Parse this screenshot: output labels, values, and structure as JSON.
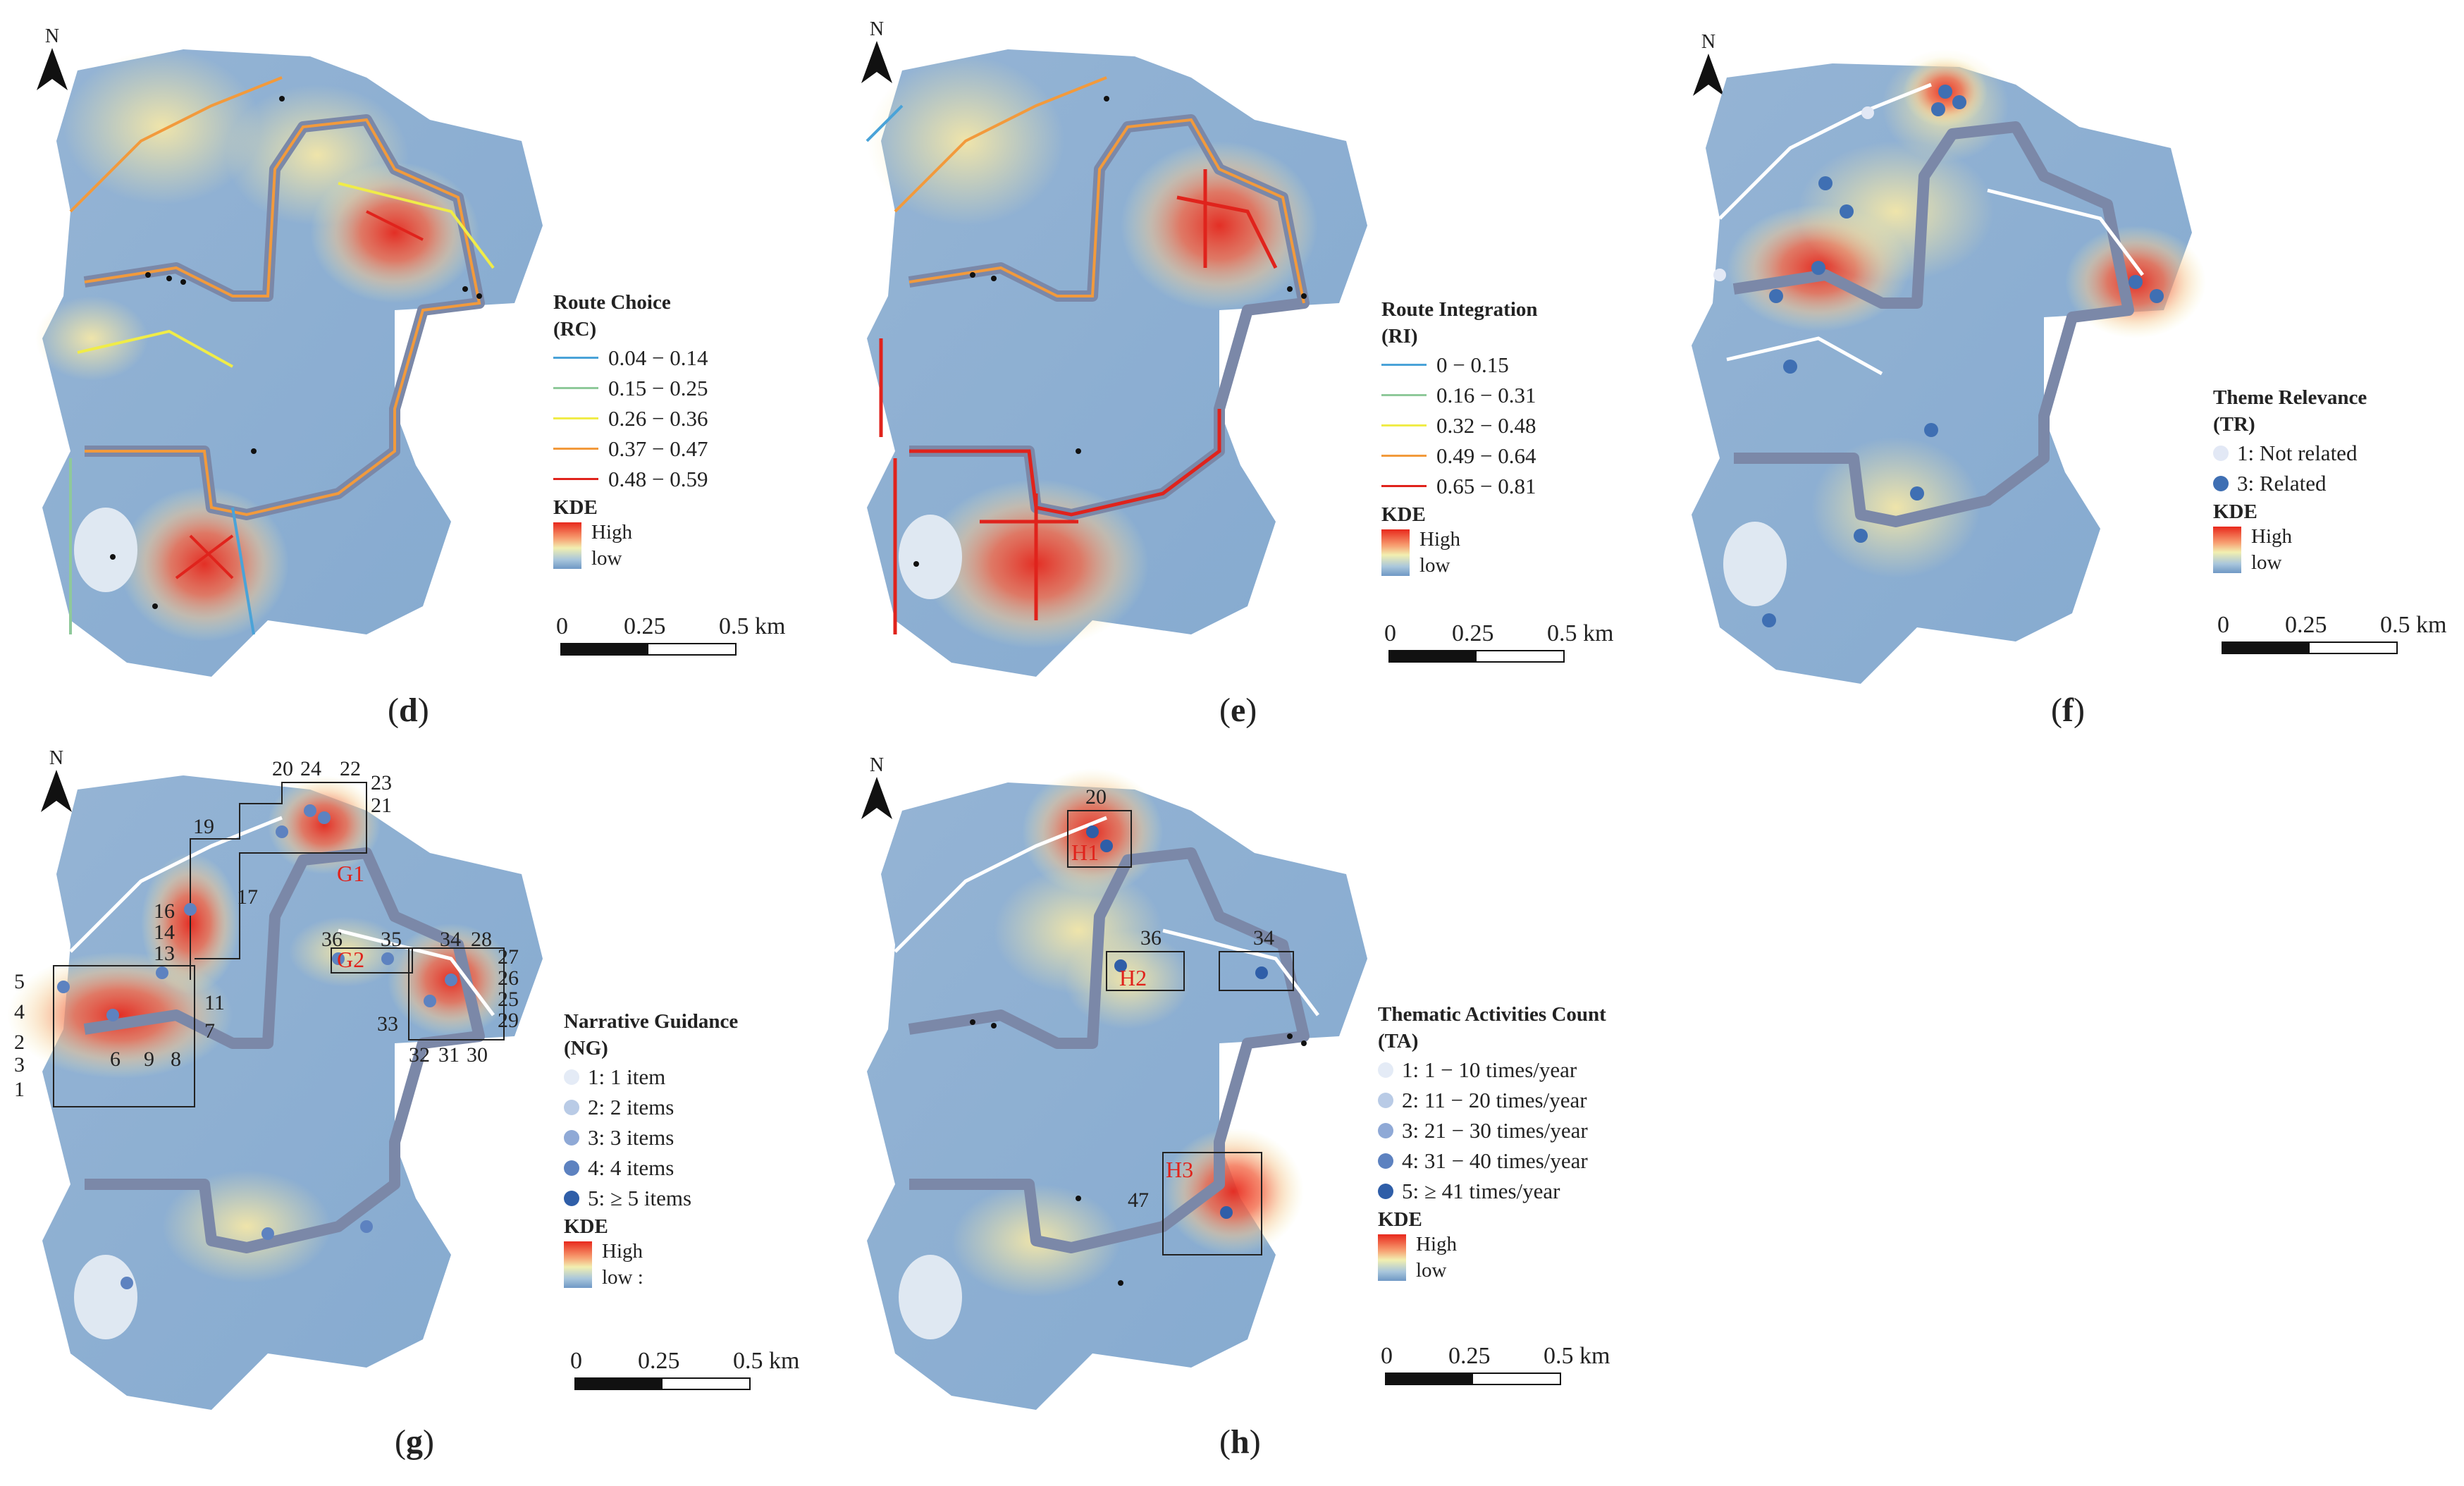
{
  "north_label": "N",
  "kde": {
    "title": "KDE",
    "high": "High",
    "low": "low",
    "low_g": "low :"
  },
  "scale": {
    "t0": "0",
    "t1": "0.25",
    "t2": "0.5 km"
  },
  "colors": {
    "road": "#7b88a8",
    "white_road": "#ffffff",
    "black": "#111111"
  },
  "panels": {
    "d": {
      "label": "d",
      "legend_title": "Route Choice",
      "legend_abbr": "(RC)",
      "items": [
        {
          "text": "0.04 − 0.14",
          "color": "#4aa3d8"
        },
        {
          "text": "0.15 − 0.25",
          "color": "#8fc99a"
        },
        {
          "text": "0.26 − 0.36",
          "color": "#f0ec48"
        },
        {
          "text": "0.37 − 0.47",
          "color": "#f29a3c"
        },
        {
          "text": "0.48 − 0.59",
          "color": "#e0231c"
        }
      ]
    },
    "e": {
      "label": "e",
      "legend_title": "Route Integration",
      "legend_abbr": "(RI)",
      "items": [
        {
          "text": "0 − 0.15",
          "color": "#4aa3d8"
        },
        {
          "text": "0.16 − 0.31",
          "color": "#8fc99a"
        },
        {
          "text": "0.32 − 0.48",
          "color": "#f0ec48"
        },
        {
          "text": "0.49 − 0.64",
          "color": "#f29a3c"
        },
        {
          "text": "0.65 − 0.81",
          "color": "#e0231c"
        }
      ]
    },
    "f": {
      "label": "f",
      "legend_title": "Theme Relevance",
      "legend_abbr": "(TR)",
      "items": [
        {
          "text": "1: Not related",
          "color": "#e2e8f5"
        },
        {
          "text": "3: Related",
          "color": "#3f6fb3"
        }
      ]
    },
    "g": {
      "label": "g",
      "legend_title": "Narrative Guidance",
      "legend_abbr": "(NG)",
      "items": [
        {
          "text": "1: 1 item",
          "color": "#e4ebf6"
        },
        {
          "text": "2: 2 items",
          "color": "#b9cbe6"
        },
        {
          "text": "3: 3 items",
          "color": "#8fa9d6"
        },
        {
          "text": "4: 4 items",
          "color": "#5d82c0"
        },
        {
          "text": "5: ≥ 5 items",
          "color": "#2f5ea8"
        }
      ],
      "numbers": [
        "1",
        "2",
        "3",
        "4",
        "5",
        "6",
        "7",
        "8",
        "9",
        "11",
        "13",
        "14",
        "16",
        "17",
        "19",
        "20",
        "21",
        "22",
        "23",
        "24",
        "25",
        "26",
        "27",
        "28",
        "29",
        "30",
        "31",
        "32",
        "33",
        "34",
        "35",
        "36"
      ],
      "boxes": [
        "G1",
        "G2"
      ]
    },
    "h": {
      "label": "h",
      "legend_title": "Thematic Activities Count",
      "legend_abbr": "(TA)",
      "items": [
        {
          "text": "1: 1 − 10 times/year",
          "color": "#e4ebf6"
        },
        {
          "text": "2: 11 − 20 times/year",
          "color": "#b9cbe6"
        },
        {
          "text": "3: 21 − 30 times/year",
          "color": "#8fa9d6"
        },
        {
          "text": "4: 31 − 40 times/year",
          "color": "#5d82c0"
        },
        {
          "text": "5: ≥ 41 times/year",
          "color": "#2f5ea8"
        }
      ],
      "numbers": [
        "20",
        "36",
        "34",
        "47"
      ],
      "boxes": [
        "H1",
        "H2",
        "H3"
      ]
    }
  }
}
